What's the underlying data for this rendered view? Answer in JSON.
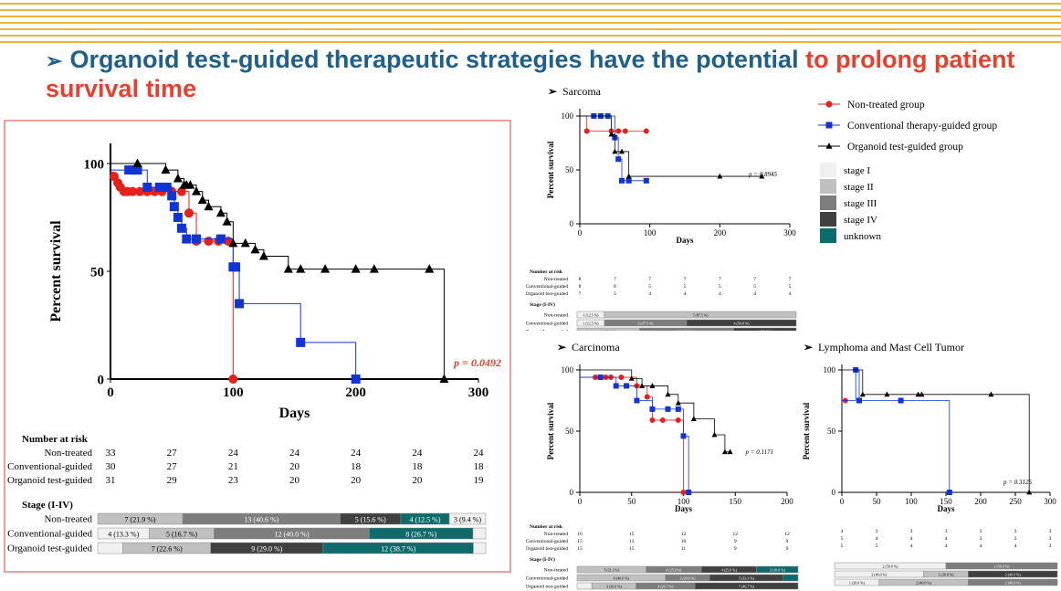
{
  "headline": {
    "arrow": "➢",
    "part1": "Organoid test-guided therapeutic strategies have the potential ",
    "part2": "to prolong patient survival time"
  },
  "colors": {
    "non": "#e8201c",
    "conv": "#1034d8",
    "org": "#000000",
    "title_blue": "#1f5f8b",
    "accent_red": "#e8402f",
    "frame": "#e87d7d",
    "unknown": "#0f6b6b"
  },
  "legend": {
    "groups": [
      {
        "label": "Non-treated group",
        "marker": "circle",
        "color": "#e8201c"
      },
      {
        "label": "Conventional therapy-guided group",
        "marker": "square",
        "color": "#1034d8"
      },
      {
        "label": "Organoid test-guided group",
        "marker": "triangle",
        "color": "#000000"
      }
    ],
    "stages": [
      {
        "label": "stage I",
        "color": "#f0f0f0"
      },
      {
        "label": "stage II",
        "color": "#c0c0c0"
      },
      {
        "label": "stage III",
        "color": "#7d7d7d"
      },
      {
        "label": "stage IV",
        "color": "#404040"
      },
      {
        "label": "unknown",
        "color": "#0f6b6b"
      }
    ]
  },
  "chart_data": [
    {
      "id": "all",
      "type": "line",
      "title": "",
      "xlabel": "Days",
      "ylabel": "Percent survival",
      "xlim": [
        0,
        300
      ],
      "ylim": [
        0,
        100
      ],
      "xticks": [
        0,
        100,
        200,
        300
      ],
      "yticks": [
        0,
        50,
        100
      ],
      "pvalue": "p = 0.0492",
      "series": [
        {
          "name": "Non-treated",
          "x": [
            0,
            3,
            6,
            8,
            11,
            14,
            18,
            24,
            30,
            36,
            42,
            50,
            58,
            64,
            70,
            80,
            88,
            96,
            100
          ],
          "y": [
            96,
            94,
            91,
            89,
            87,
            87,
            87,
            87,
            87,
            87,
            87,
            87,
            87,
            77,
            64,
            64,
            64,
            64,
            0
          ]
        },
        {
          "name": "Conventional-guided",
          "x": [
            0,
            15,
            20,
            22,
            30,
            40,
            46,
            50,
            52,
            55,
            58,
            62,
            70,
            90,
            100,
            102,
            105,
            155,
            200
          ],
          "y": [
            97,
            97,
            97,
            97,
            89,
            89,
            89,
            85,
            80,
            75,
            70,
            65,
            65,
            65,
            52,
            52,
            35,
            17,
            0
          ]
        },
        {
          "name": "Organoid test-guided",
          "x": [
            0,
            22,
            45,
            55,
            60,
            62,
            65,
            70,
            75,
            80,
            90,
            95,
            100,
            110,
            118,
            125,
            145,
            155,
            175,
            200,
            215,
            260,
            272
          ],
          "y": [
            100,
            100,
            97,
            93,
            90,
            90,
            90,
            87,
            83,
            80,
            77,
            73,
            63,
            63,
            60,
            57,
            51,
            51,
            51,
            51,
            51,
            51,
            0
          ]
        }
      ],
      "risk": {
        "title": "Number at risk",
        "rows": [
          {
            "name": "Non-treated",
            "values": [
              "33",
              "27",
              "24",
              "24",
              "24",
              "24",
              "24"
            ]
          },
          {
            "name": "Conventional-guided",
            "values": [
              "30",
              "27",
              "21",
              "20",
              "18",
              "18",
              "18"
            ]
          },
          {
            "name": "Organoid test-guided",
            "values": [
              "31",
              "29",
              "23",
              "20",
              "20",
              "20",
              "19"
            ]
          }
        ]
      },
      "stage": {
        "title": "Stage (I-IV)",
        "rows": [
          {
            "name": "Non-treated",
            "segments": [
              {
                "label": "",
                "value": 0
              },
              {
                "label": "7 (21.9 %)",
                "value": 21.9
              },
              {
                "label": "13 (40.6 %)",
                "value": 40.6
              },
              {
                "label": "5 (15.6 %)",
                "value": 15.6
              },
              {
                "label": "4 (12.5 %)",
                "value": 12.5
              },
              {
                "label": "3 (9.4 %)",
                "value": 9.4
              }
            ]
          },
          {
            "name": "Conventional-guided",
            "segments": [
              {
                "label": "4 (13.3 %)",
                "value": 13.3
              },
              {
                "label": "5 (16.7 %)",
                "value": 16.7
              },
              {
                "label": "12 (40.0 %)",
                "value": 40.0
              },
              {
                "label": "",
                "value": 0
              },
              {
                "label": "8 (26.7 %)",
                "value": 26.7
              },
              {
                "label": "1 (3.3 %)",
                "value": 3.3
              }
            ]
          },
          {
            "name": "Organoid test-guided",
            "segments": [
              {
                "label": "2 (6.5 %)",
                "value": 6.5
              },
              {
                "label": "7 (22.6 %)",
                "value": 22.6
              },
              {
                "label": "",
                "value": 0
              },
              {
                "label": "9 (29.0 %)",
                "value": 29.0
              },
              {
                "label": "12 (38.7 %)",
                "value": 38.7
              },
              {
                "label": "1 (3.2 %)",
                "value": 3.2
              }
            ]
          }
        ]
      }
    },
    {
      "id": "sarcoma",
      "type": "line",
      "title": "Sarcoma",
      "xlabel": "Days",
      "ylabel": "Percent survival",
      "xlim": [
        0,
        300
      ],
      "ylim": [
        0,
        100
      ],
      "xticks": [
        0,
        100,
        200,
        300
      ],
      "yticks": [
        0,
        50,
        100
      ],
      "pvalue": "p = 0.8945",
      "series": [
        {
          "name": "Non-treated",
          "x": [
            0,
            10,
            45,
            55,
            65,
            95
          ],
          "y": [
            100,
            86,
            86,
            86,
            86,
            86
          ]
        },
        {
          "name": "Conventional-guided",
          "x": [
            0,
            20,
            30,
            40,
            50,
            55,
            60,
            70,
            95
          ],
          "y": [
            100,
            100,
            100,
            100,
            80,
            60,
            40,
            40,
            40
          ]
        },
        {
          "name": "Organoid test-guided",
          "x": [
            0,
            45,
            50,
            60,
            70,
            200,
            260
          ],
          "y": [
            100,
            83,
            67,
            67,
            44,
            44,
            44
          ]
        }
      ],
      "risk": {
        "title": "Number at risk",
        "rows": [
          {
            "name": "Non-treated",
            "values": [
              "8",
              "7",
              "7",
              "7",
              "7",
              "7",
              "7"
            ]
          },
          {
            "name": "Conventional-guided",
            "values": [
              "8",
              "8",
              "5",
              "5",
              "5",
              "5",
              "5"
            ]
          },
          {
            "name": "Organoid test-guided",
            "values": [
              "7",
              "5",
              "4",
              "4",
              "4",
              "4",
              "4"
            ]
          }
        ]
      },
      "stage": {
        "title": "Stage (I-IV)",
        "rows": [
          {
            "name": "Non-treated",
            "segments": [
              {
                "label": "1 (12.5 %)",
                "value": 12.5
              },
              {
                "label": "7 (87.5 %)",
                "value": 87.5
              }
            ],
            "tones": [
              0,
              1
            ]
          },
          {
            "name": "Conventional-guided",
            "segments": [
              {
                "label": "1 (12.5 %)",
                "value": 12.5
              },
              {
                "label": "3 (37.5 %)",
                "value": 37.5
              },
              {
                "label": "4 (50.0 %)",
                "value": 50.0
              }
            ],
            "tones": [
              0,
              2,
              3
            ]
          },
          {
            "name": "Organoid test-guided",
            "segments": [
              {
                "label": "2 (28.6 %)",
                "value": 28.6
              },
              {
                "label": "3 (42.9 %)",
                "value": 42.9
              },
              {
                "label": "2 (28.6 %)",
                "value": 28.6
              }
            ],
            "tones": [
              1,
              2,
              3
            ]
          }
        ]
      }
    },
    {
      "id": "carcinoma",
      "type": "line",
      "title": "Carcinoma",
      "xlabel": "Days",
      "ylabel": "Percent survival",
      "xlim": [
        0,
        200
      ],
      "ylim": [
        0,
        100
      ],
      "xticks": [
        0,
        50,
        100,
        150,
        200
      ],
      "yticks": [
        0,
        50,
        100
      ],
      "pvalue": "p = 0.1171",
      "series": [
        {
          "name": "Non-treated",
          "x": [
            0,
            15,
            20,
            25,
            30,
            40,
            55,
            65,
            70,
            80,
            95,
            100
          ],
          "y": [
            94,
            94,
            94,
            94,
            94,
            94,
            87,
            78,
            59,
            59,
            59,
            0
          ]
        },
        {
          "name": "Conventional-guided",
          "x": [
            0,
            20,
            35,
            45,
            55,
            70,
            85,
            95,
            100,
            105
          ],
          "y": [
            94,
            94,
            87,
            87,
            75,
            68,
            68,
            68,
            46,
            0
          ]
        },
        {
          "name": "Organoid test-guided",
          "x": [
            0,
            50,
            60,
            70,
            85,
            95,
            110,
            130,
            140,
            145
          ],
          "y": [
            100,
            93,
            87,
            87,
            80,
            73,
            60,
            47,
            33,
            33
          ]
        }
      ],
      "risk": {
        "title": "Number at risk",
        "rows": [
          {
            "name": "Non-treated",
            "values": [
              "16",
              "15",
              "12",
              "12",
              "12"
            ]
          },
          {
            "name": "Conventional-guided",
            "values": [
              "15",
              "13",
              "10",
              "9",
              "9"
            ]
          },
          {
            "name": "Organoid test-guided",
            "values": [
              "15",
              "15",
              "11",
              "9",
              "9"
            ]
          }
        ]
      },
      "stage": {
        "title": "Stage (I-IV)",
        "rows": [
          {
            "name": "Non-treated",
            "segments": [
              {
                "label": "5 (31.3 %)",
                "value": 31.3
              },
              {
                "label": "4 (25.0 %)",
                "value": 25.0
              },
              {
                "label": "4 (25.0 %)",
                "value": 25.0
              },
              {
                "label": "3 (18.8 %)",
                "value": 18.8
              }
            ],
            "tones": [
              1,
              2,
              3,
              4
            ]
          },
          {
            "name": "Conventional-guided",
            "segments": [
              {
                "label": "6 (40.0 %)",
                "value": 40.0
              },
              {
                "label": "3 (20.0 %)",
                "value": 20.0
              },
              {
                "label": "5 (33.3 %)",
                "value": 33.3
              },
              {
                "label": "1 (6.7 %)",
                "value": 6.7
              }
            ],
            "tones": [
              1,
              2,
              3,
              4
            ]
          },
          {
            "name": "Organoid test-guided",
            "segments": [
              {
                "label": "1 (6.7 %)",
                "value": 6.7
              },
              {
                "label": "3 (20.0 %)",
                "value": 20.0
              },
              {
                "label": "4 (26.7 %)",
                "value": 26.7
              },
              {
                "label": "7 (46.7 %)",
                "value": 46.7
              }
            ],
            "tones": [
              0,
              1,
              2,
              3
            ]
          }
        ]
      }
    },
    {
      "id": "lymphoma",
      "type": "line",
      "title": "Lymphoma and Mast Cell Tumor",
      "xlabel": "Days",
      "ylabel": "Percent survival",
      "xlim": [
        0,
        300
      ],
      "ylim": [
        0,
        100
      ],
      "xticks": [
        0,
        50,
        100,
        150,
        200,
        250,
        300
      ],
      "yticks": [
        0,
        50,
        100
      ],
      "pvalue": "p = 0.3125",
      "series": [
        {
          "name": "Non-treated",
          "x": [
            0,
            5
          ],
          "y": [
            75,
            75
          ]
        },
        {
          "name": "Conventional-guided",
          "x": [
            0,
            20,
            25,
            85,
            155
          ],
          "y": [
            75,
            100,
            75,
            75,
            0
          ]
        },
        {
          "name": "Organoid test-guided",
          "x": [
            0,
            30,
            65,
            110,
            115,
            215,
            270
          ],
          "y": [
            100,
            80,
            80,
            80,
            80,
            80,
            0
          ]
        }
      ],
      "risk": {
        "title": "",
        "rows": [
          {
            "name": "",
            "values": [
              "4",
              "3",
              "3",
              "3",
              "3",
              "3",
              "3"
            ]
          },
          {
            "name": "",
            "values": [
              "5",
              "4",
              "4",
              "4",
              "3",
              "3",
              "3"
            ]
          },
          {
            "name": "",
            "values": [
              "5",
              "5",
              "4",
              "4",
              "4",
              "4",
              "3"
            ]
          }
        ]
      },
      "stage": {
        "title": "",
        "rows": [
          {
            "name": "",
            "segments": [
              {
                "label": "2 (50.0 %)",
                "value": 50.0
              },
              {
                "label": "2 (50.0 %)",
                "value": 50.0
              }
            ],
            "tones": [
              0,
              2
            ]
          },
          {
            "name": "",
            "segments": [
              {
                "label": "2 (40.0 %)",
                "value": 40.0
              },
              {
                "label": "1 (20.0 %)",
                "value": 20.0
              },
              {
                "label": "2 (40.0 %)",
                "value": 40.0
              }
            ],
            "tones": [
              0,
              1,
              3
            ]
          },
          {
            "name": "",
            "segments": [
              {
                "label": "1 (20.0 %)",
                "value": 20.0
              },
              {
                "label": "2 (40.0 %)",
                "value": 40.0
              },
              {
                "label": "2 (40.0 %)",
                "value": 40.0
              }
            ],
            "tones": [
              0,
              1,
              2
            ]
          }
        ]
      }
    }
  ]
}
